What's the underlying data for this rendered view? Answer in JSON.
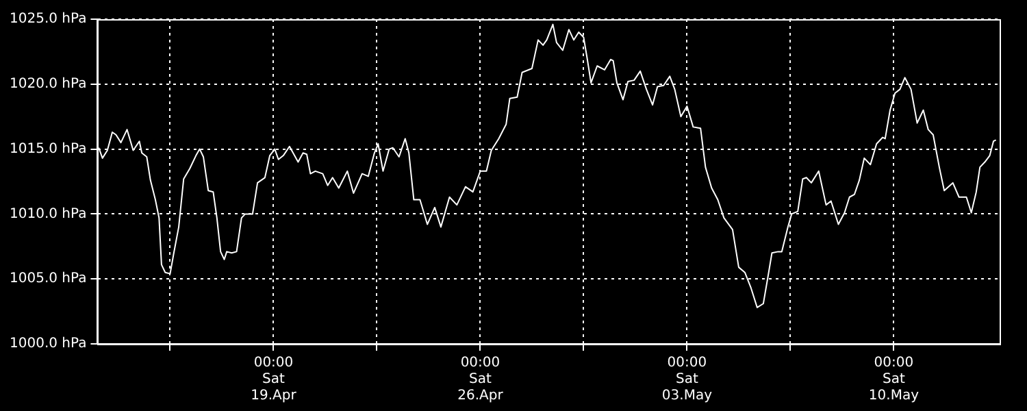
{
  "chart_data": {
    "type": "line",
    "x": [
      "--04-13T02:00",
      "--04-13T05:00",
      "--04-13T09:00",
      "--04-13T13:00",
      "--04-13T16:00",
      "--04-13T20:00",
      "--04-14T01:00",
      "--04-14T06:00",
      "--04-14T11:00",
      "--04-14T13:00",
      "--04-14T17:00",
      "--04-14T20:00",
      "--04-15T00:00",
      "--04-15T03:00",
      "--04-15T05:00",
      "--04-15T08:00",
      "--04-15T12:00",
      "--04-15T15:00",
      "--04-15T19:00",
      "--04-15T23:00",
      "--04-16T04:00",
      "--04-16T09:00",
      "--04-16T12:00",
      "--04-16T15:00",
      "--04-16T19:00",
      "--04-16T23:00",
      "--04-17T02:00",
      "--04-17T05:00",
      "--04-17T08:00",
      "--04-17T10:00",
      "--04-17T14:00",
      "--04-17T18:00",
      "--04-17T22:00",
      "--04-18T01:00",
      "--04-18T07:00",
      "--04-18T11:00",
      "--04-18T17:00",
      "--04-18T21:00",
      "--04-19T01:00",
      "--04-19T04:00",
      "--04-19T08:00",
      "--04-19T13:00",
      "--04-19T20:00",
      "--04-20T00:00",
      "--04-20T03:00",
      "--04-20T06:00",
      "--04-20T10:00",
      "--04-20T16:00",
      "--04-20T20:00",
      "--04-21T00:00",
      "--04-21T05:00",
      "--04-21T12:00",
      "--04-21T17:00",
      "--04-22T00:00",
      "--04-22T05:00",
      "--04-22T10:00",
      "--04-22T13:00",
      "--04-22T17:00",
      "--04-22T22:00",
      "--04-23T01:00",
      "--04-23T06:00",
      "--04-23T11:00",
      "--04-23T14:00",
      "--04-23T18:00",
      "--04-23T23:00",
      "--04-24T05:00",
      "--04-24T11:00",
      "--04-24T16:00",
      "--04-24T23:00",
      "--04-25T05:00",
      "--04-25T12:00",
      "--04-25T18:00",
      "--04-26T00:00",
      "--04-26T05:00",
      "--04-26T09:00",
      "--04-26T15:00",
      "--04-26T21:00",
      "--04-27T00:00",
      "--04-27T06:00",
      "--04-27T10:00",
      "--04-27T18:00",
      "--04-27T23:00",
      "--04-28T03:00",
      "--04-28T06:00",
      "--04-28T11:00",
      "--04-28T14:00",
      "--04-28T19:00",
      "--04-29T00:00",
      "--04-29T04:00",
      "--04-29T08:00",
      "--04-29T12:00",
      "--04-29T15:00",
      "--04-29T18:00",
      "--04-29T23:00",
      "--04-30T05:00",
      "--04-30T10:00",
      "--04-30T12:00",
      "--04-30T15:00",
      "--04-30T20:00",
      "--05-01T00:00",
      "--05-01T05:00",
      "--05-01T10:00",
      "--05-01T15:00",
      "--05-01T20:00",
      "--05-02T00:00",
      "--05-02T05:00",
      "--05-02T10:00",
      "--05-02T14:00",
      "--05-02T19:00",
      "--05-03T00:00",
      "--05-03T05:00",
      "--05-03T11:00",
      "--05-03T15:00",
      "--05-03T20:00",
      "--05-04T01:00",
      "--05-04T06:00",
      "--05-04T13:00",
      "--05-04T18:00",
      "--05-04T23:00",
      "--05-05T04:00",
      "--05-05T09:00",
      "--05-05T14:00",
      "--05-05T18:00",
      "--05-05T21:00",
      "--05-06T02:00",
      "--05-06T05:00",
      "--05-06T10:00",
      "--05-06T13:00",
      "--05-06T18:00",
      "--05-06T22:00",
      "--05-07T01:00",
      "--05-07T05:00",
      "--05-07T11:00",
      "--05-07T17:00",
      "--05-07T21:00",
      "--05-08T03:00",
      "--05-08T08:00",
      "--05-08T12:00",
      "--05-08T16:00",
      "--05-08T20:00",
      "--05-09T00:00",
      "--05-09T05:00",
      "--05-09T10:00",
      "--05-09T15:00",
      "--05-09T17:00",
      "--05-09T21:00",
      "--05-10T01:00",
      "--05-10T05:00",
      "--05-10T09:00",
      "--05-10T14:00",
      "--05-10T19:00",
      "--05-11T00:00",
      "--05-11T04:00",
      "--05-11T08:00",
      "--05-11T13:00",
      "--05-11T17:00",
      "--05-12T00:00",
      "--05-12T05:00",
      "--05-12T11:00",
      "--05-12T15:00",
      "--05-12T19:00",
      "--05-12T22:00",
      "--05-13T02:00",
      "--05-13T06:00",
      "--05-13T09:00",
      "--05-13T11:00"
    ],
    "series": [
      {
        "color": "#ffffff",
        "values": [
          1015.1,
          1014.3,
          1014.9,
          1016.3,
          1016.1,
          1015.5,
          1016.5,
          1014.9,
          1015.6,
          1014.7,
          1014.4,
          1012.6,
          1011.1,
          1009.7,
          1006.1,
          1005.5,
          1005.4,
          1007.0,
          1009.0,
          1012.7,
          1013.5,
          1014.5,
          1015.0,
          1014.4,
          1011.8,
          1011.7,
          1009.7,
          1007.1,
          1006.5,
          1007.1,
          1007.0,
          1007.1,
          1009.7,
          1010.0,
          1010.0,
          1012.4,
          1012.8,
          1014.5,
          1015.0,
          1014.2,
          1014.5,
          1015.2,
          1014.0,
          1014.7,
          1014.6,
          1013.1,
          1013.3,
          1013.1,
          1012.2,
          1012.8,
          1012.0,
          1013.3,
          1011.6,
          1013.1,
          1012.9,
          1014.7,
          1015.4,
          1013.3,
          1015.0,
          1015.1,
          1014.4,
          1015.8,
          1014.7,
          1011.1,
          1011.1,
          1009.2,
          1010.5,
          1009.0,
          1011.3,
          1010.7,
          1012.1,
          1011.7,
          1013.3,
          1013.3,
          1014.9,
          1015.8,
          1016.9,
          1018.9,
          1019.0,
          1020.9,
          1021.2,
          1023.4,
          1023.0,
          1023.4,
          1024.6,
          1023.2,
          1022.6,
          1024.2,
          1023.4,
          1024.0,
          1023.6,
          1021.9,
          1020.1,
          1021.4,
          1021.1,
          1021.9,
          1021.8,
          1020.1,
          1018.8,
          1020.2,
          1020.3,
          1021.0,
          1019.6,
          1018.4,
          1019.8,
          1019.9,
          1020.6,
          1019.6,
          1017.5,
          1018.3,
          1016.7,
          1016.6,
          1013.6,
          1012.0,
          1011.1,
          1009.7,
          1008.8,
          1005.9,
          1005.5,
          1004.3,
          1002.8,
          1003.1,
          1005.3,
          1007.0,
          1007.1,
          1007.1,
          1009.0,
          1010.0,
          1010.2,
          1012.7,
          1012.8,
          1012.4,
          1013.3,
          1010.7,
          1011.0,
          1009.2,
          1010.1,
          1011.3,
          1011.5,
          1012.6,
          1014.3,
          1013.8,
          1015.4,
          1015.9,
          1015.8,
          1018.0,
          1019.3,
          1019.6,
          1020.5,
          1019.6,
          1017.0,
          1018.0,
          1016.5,
          1016.1,
          1013.6,
          1011.8,
          1012.4,
          1011.3,
          1011.3,
          1010.1,
          1011.7,
          1013.6,
          1014.0,
          1014.5,
          1015.6,
          1015.7
        ]
      }
    ],
    "xlim": [
      "--04-13T01:00",
      "--05-13T14:00"
    ],
    "xticks": [
      {
        "value": "--04-15T12:00",
        "label": null
      },
      {
        "value": "--04-19",
        "label": "00:00\nSat\n19.Apr"
      },
      {
        "value": "--04-22T12:00",
        "label": null
      },
      {
        "value": "--04-26",
        "label": "00:00\nSat\n26.Apr"
      },
      {
        "value": "--04-29T12:00",
        "label": null
      },
      {
        "value": "--05-03",
        "label": "00:00\nSat\n03.May"
      },
      {
        "value": "--05-06T12:00",
        "label": null
      },
      {
        "value": "--05-10",
        "label": "00:00\nSat\n10.May"
      }
    ],
    "ylim": [
      1000,
      1025
    ],
    "yticks": [
      {
        "value": 1000,
        "label": "1000.0 hPa"
      },
      {
        "value": 1005,
        "label": "1005.0 hPa"
      },
      {
        "value": 1010,
        "label": "1010.0 hPa"
      },
      {
        "value": 1015,
        "label": "1015.0 hPa"
      },
      {
        "value": 1020,
        "label": "1020.0 hPa"
      },
      {
        "value": 1025,
        "label": "1025.0 hPa"
      }
    ],
    "grid": true,
    "marker": "none",
    "line_style": "solid"
  }
}
